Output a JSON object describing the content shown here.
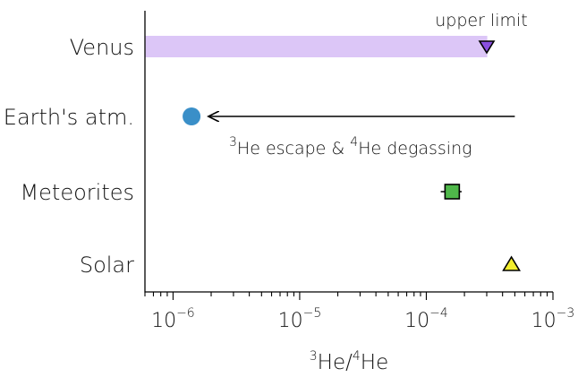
{
  "chart_data": {
    "type": "scatter",
    "x_scale": "log",
    "xlim": [
      6e-07,
      0.001
    ],
    "xlabel": {
      "pre": "3",
      "mid": "He/",
      "sup": "4",
      "post": "He"
    },
    "x_ticks": [
      {
        "base": "10",
        "exp": "−6",
        "value": 1e-06
      },
      {
        "base": "10",
        "exp": "−5",
        "value": 1e-05
      },
      {
        "base": "10",
        "exp": "−4",
        "value": 0.0001
      },
      {
        "base": "10",
        "exp": "−3",
        "value": 0.001
      }
    ],
    "categories": [
      "Venus",
      "Earth's atm.",
      "Meteorites",
      "Solar"
    ],
    "points": [
      {
        "category": "Venus",
        "x": 0.0003,
        "marker": "triangle-down",
        "color": "#8a4fe0",
        "note": "upper limit"
      },
      {
        "category": "Earth's atm.",
        "x": 1.4e-06,
        "marker": "circle",
        "color": "#3a8fc8"
      },
      {
        "category": "Meteorites",
        "x": 0.00016,
        "x_err": [
          0.00013,
          0.00019
        ],
        "marker": "square",
        "color": "#4fb84a"
      },
      {
        "category": "Solar",
        "x": 0.00047,
        "marker": "triangle-up",
        "color": "#f2ee2e"
      }
    ],
    "venus_band": {
      "x_range": [
        6e-07,
        0.0003
      ],
      "color": "#dcc6f7"
    },
    "annotations": {
      "upper_limit": "upper limit",
      "arrow": {
        "from_x": 0.0005,
        "to_x": 1.9e-06,
        "category": "Earth's atm."
      },
      "escape": {
        "s1": "3",
        "t1": "He escape & ",
        "s2": "4",
        "t2": "He degassing"
      }
    }
  }
}
